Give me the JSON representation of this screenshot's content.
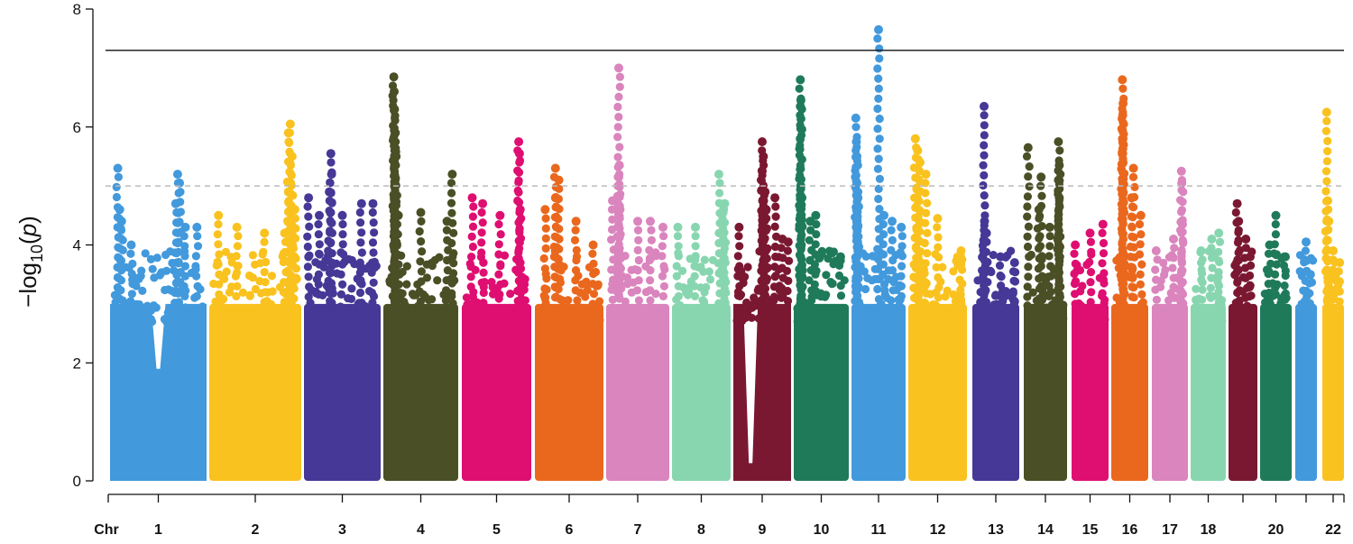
{
  "chart_data": {
    "type": "scatter",
    "subtype": "manhattan",
    "title": "",
    "xlabel": "Chr",
    "ylabel_prefix": "−log",
    "ylabel_sub": "10",
    "ylabel_arg": "p",
    "ylim": [
      0,
      8
    ],
    "yticks": [
      0,
      2,
      4,
      6,
      8
    ],
    "genome_wide_threshold": 7.3,
    "suggestive_threshold": 5,
    "point_bulk_max": 3.0,
    "chromosomes": [
      {
        "chr": "1",
        "label": "1",
        "color": "#4299DC",
        "dip_center": 0.5,
        "dip": 1.9,
        "peaks": [
          [
            0.08,
            5.3
          ],
          [
            0.1,
            4.6
          ],
          [
            0.12,
            4.4
          ],
          [
            0.22,
            4.0
          ],
          [
            0.7,
            5.2
          ],
          [
            0.72,
            5.05
          ],
          [
            0.68,
            4.7
          ],
          [
            0.78,
            4.3
          ],
          [
            0.9,
            4.3
          ]
        ]
      },
      {
        "chr": "2",
        "label": "2",
        "color": "#F9C21F",
        "peaks": [
          [
            0.1,
            4.5
          ],
          [
            0.3,
            4.3
          ],
          [
            0.6,
            4.2
          ],
          [
            0.82,
            4.2
          ],
          [
            0.88,
            6.05
          ],
          [
            0.86,
            5.9
          ],
          [
            0.9,
            5.5
          ],
          [
            0.86,
            4.9
          ],
          [
            0.93,
            4.6
          ]
        ]
      },
      {
        "chr": "3",
        "label": "3",
        "color": "#453896",
        "peaks": [
          [
            0.06,
            4.8
          ],
          [
            0.2,
            4.5
          ],
          [
            0.35,
            5.55
          ],
          [
            0.36,
            5.2
          ],
          [
            0.33,
            4.9
          ],
          [
            0.5,
            4.5
          ],
          [
            0.75,
            4.7
          ],
          [
            0.9,
            4.7
          ]
        ]
      },
      {
        "chr": "4",
        "label": "4",
        "color": "#4B4F26",
        "peaks": [
          [
            0.14,
            6.85
          ],
          [
            0.145,
            6.6
          ],
          [
            0.15,
            6.3
          ],
          [
            0.16,
            5.9
          ],
          [
            0.17,
            5.5
          ],
          [
            0.15,
            5.0
          ],
          [
            0.2,
            4.5
          ],
          [
            0.5,
            4.55
          ],
          [
            0.92,
            5.2
          ],
          [
            0.85,
            4.4
          ]
        ]
      },
      {
        "chr": "5",
        "label": "5",
        "color": "#DF0E71",
        "peaks": [
          [
            0.15,
            4.8
          ],
          [
            0.3,
            4.7
          ],
          [
            0.55,
            4.5
          ],
          [
            0.82,
            5.75
          ],
          [
            0.83,
            5.55
          ],
          [
            0.84,
            4.6
          ]
        ]
      },
      {
        "chr": "6",
        "label": "6",
        "color": "#EA681E",
        "peaks": [
          [
            0.15,
            4.6
          ],
          [
            0.3,
            5.3
          ],
          [
            0.35,
            5.1
          ],
          [
            0.3,
            4.8
          ],
          [
            0.6,
            4.4
          ],
          [
            0.85,
            4.0
          ]
        ]
      },
      {
        "chr": "7",
        "label": "7",
        "color": "#DA85BD",
        "peaks": [
          [
            0.1,
            4.75
          ],
          [
            0.2,
            7.0
          ],
          [
            0.21,
            5.35
          ],
          [
            0.2,
            5.15
          ],
          [
            0.22,
            4.6
          ],
          [
            0.5,
            4.4
          ],
          [
            0.7,
            4.4
          ],
          [
            0.9,
            4.3
          ]
        ]
      },
      {
        "chr": "8",
        "label": "8",
        "color": "#88D6B0",
        "peaks": [
          [
            0.1,
            4.3
          ],
          [
            0.4,
            4.3
          ],
          [
            0.8,
            5.2
          ],
          [
            0.88,
            4.6
          ],
          [
            0.9,
            4.7
          ]
        ]
      },
      {
        "chr": "9",
        "label": "9",
        "color": "#7B1831",
        "dip_center": 0.3,
        "dip": 0.3,
        "peaks": [
          [
            0.1,
            4.3
          ],
          [
            0.5,
            5.75
          ],
          [
            0.52,
            5.5
          ],
          [
            0.5,
            5.25
          ],
          [
            0.55,
            4.9
          ],
          [
            0.57,
            4.6
          ],
          [
            0.72,
            4.8
          ],
          [
            0.85,
            4.1
          ],
          [
            0.95,
            4.05
          ]
        ]
      },
      {
        "chr": "10",
        "label": "10",
        "color": "#1F7A5A",
        "peaks": [
          [
            0.12,
            6.8
          ],
          [
            0.13,
            6.45
          ],
          [
            0.12,
            6.35
          ],
          [
            0.13,
            5.0
          ],
          [
            0.15,
            4.8
          ],
          [
            0.3,
            4.4
          ],
          [
            0.4,
            4.5
          ],
          [
            0.85,
            3.8
          ]
        ]
      },
      {
        "chr": "11",
        "label": "11",
        "color": "#4299DC",
        "peaks": [
          [
            0.08,
            6.15
          ],
          [
            0.09,
            5.75
          ],
          [
            0.1,
            5.5
          ],
          [
            0.1,
            5.05
          ],
          [
            0.12,
            4.8
          ],
          [
            0.5,
            7.65
          ],
          [
            0.6,
            4.5
          ],
          [
            0.75,
            4.4
          ],
          [
            0.92,
            4.3
          ]
        ]
      },
      {
        "chr": "12",
        "label": "12",
        "color": "#F9C21F",
        "peaks": [
          [
            0.12,
            5.8
          ],
          [
            0.16,
            5.6
          ],
          [
            0.2,
            5.4
          ],
          [
            0.3,
            5.2
          ],
          [
            0.15,
            4.8
          ],
          [
            0.5,
            4.45
          ],
          [
            0.9,
            3.9
          ]
        ]
      },
      {
        "chr": "13",
        "label": "13",
        "color": "#453896",
        "peaks": [
          [
            0.25,
            6.35
          ],
          [
            0.26,
            4.4
          ],
          [
            0.3,
            4.2
          ],
          [
            0.6,
            3.8
          ],
          [
            0.9,
            3.7
          ]
        ]
      },
      {
        "chr": "14",
        "label": "14",
        "color": "#4B4F26",
        "peaks": [
          [
            0.1,
            5.65
          ],
          [
            0.4,
            5.15
          ],
          [
            0.35,
            4.6
          ],
          [
            0.8,
            5.75
          ],
          [
            0.82,
            5.35
          ],
          [
            0.8,
            5.1
          ],
          [
            0.82,
            4.8
          ],
          [
            0.6,
            4.3
          ]
        ]
      },
      {
        "chr": "15",
        "label": "15",
        "color": "#DF0E71",
        "peaks": [
          [
            0.1,
            4.0
          ],
          [
            0.5,
            4.2
          ],
          [
            0.85,
            4.35
          ]
        ]
      },
      {
        "chr": "16",
        "label": "16",
        "color": "#EA681E",
        "peaks": [
          [
            0.3,
            6.8
          ],
          [
            0.32,
            6.4
          ],
          [
            0.31,
            6.2
          ],
          [
            0.3,
            5.95
          ],
          [
            0.33,
            5.7
          ],
          [
            0.6,
            5.3
          ],
          [
            0.55,
            4.8
          ],
          [
            0.8,
            4.5
          ]
        ]
      },
      {
        "chr": "17",
        "label": "17",
        "color": "#DA85BD",
        "peaks": [
          [
            0.12,
            3.9
          ],
          [
            0.6,
            4.1
          ],
          [
            0.82,
            5.25
          ],
          [
            0.83,
            5.05
          ],
          [
            0.85,
            4.35
          ]
        ]
      },
      {
        "chr": "18",
        "label": "18",
        "color": "#88D6B0",
        "peaks": [
          [
            0.3,
            3.9
          ],
          [
            0.6,
            4.1
          ],
          [
            0.8,
            4.2
          ]
        ]
      },
      {
        "chr": "19",
        "label": "",
        "color": "#7B1831",
        "peaks": [
          [
            0.3,
            4.7
          ],
          [
            0.35,
            4.4
          ],
          [
            0.6,
            4.1
          ],
          [
            0.75,
            3.8
          ]
        ]
      },
      {
        "chr": "20",
        "label": "20",
        "color": "#1F7A5A",
        "peaks": [
          [
            0.5,
            4.5
          ],
          [
            0.3,
            4.0
          ],
          [
            0.8,
            3.8
          ]
        ]
      },
      {
        "chr": "21",
        "label": "",
        "color": "#4299DC",
        "peaks": [
          [
            0.5,
            4.05
          ],
          [
            0.7,
            3.5
          ]
        ]
      },
      {
        "chr": "22",
        "label": "22",
        "color": "#F9C21F",
        "peaks": [
          [
            0.2,
            6.25
          ],
          [
            0.25,
            4.75
          ],
          [
            0.3,
            4.4
          ],
          [
            0.5,
            3.9
          ],
          [
            0.8,
            3.7
          ]
        ]
      }
    ]
  }
}
